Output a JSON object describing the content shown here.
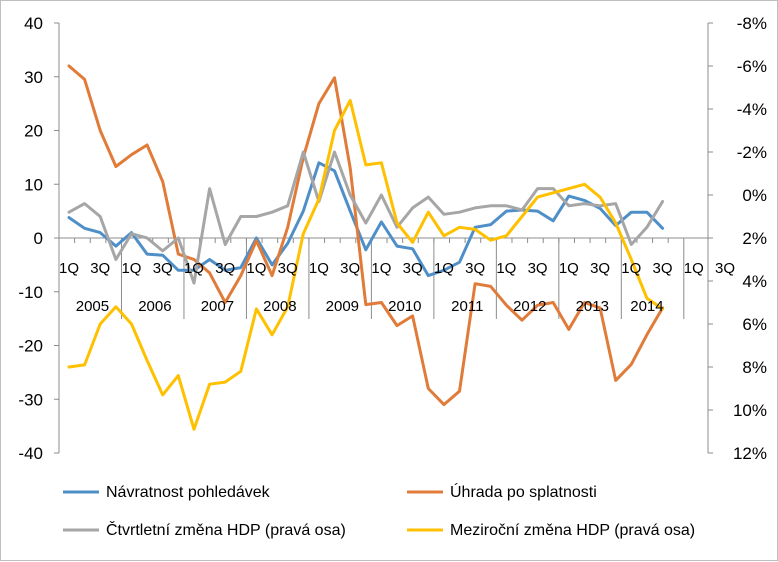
{
  "chart_data": {
    "type": "line",
    "quarter_labels": [
      "1Q",
      "",
      "3Q",
      "",
      "1Q",
      "",
      "3Q",
      "",
      "1Q",
      "",
      "3Q",
      "",
      "1Q",
      "",
      "3Q",
      "",
      "1Q",
      "",
      "3Q",
      "",
      "1Q",
      "",
      "3Q",
      "",
      "1Q",
      "",
      "3Q",
      "",
      "1Q",
      "",
      "3Q",
      "",
      "1Q",
      "",
      "3Q",
      "",
      "1Q",
      "",
      "3Q",
      "",
      "1Q",
      "",
      "3Q"
    ],
    "year_labels": [
      "2005",
      "2006",
      "2007",
      "2008",
      "2009",
      "2010",
      "2011",
      "2012",
      "2013",
      "2014"
    ],
    "left_axis": {
      "ticks": [
        "40",
        "30",
        "20",
        "10",
        "0",
        "-10",
        "-20",
        "-30",
        "-40"
      ],
      "ylim": [
        -40,
        40
      ]
    },
    "right_axis": {
      "ticks": [
        "-8%",
        "-6%",
        "-4%",
        "-2%",
        "0%",
        "2%",
        "4%",
        "6%",
        "8%",
        "10%",
        "12%"
      ],
      "ylim": [
        -8,
        12
      ],
      "reversed": true
    },
    "grid": false,
    "legend_position": "bottom",
    "series": [
      {
        "name": "Návratnost pohledávek",
        "axis": "left",
        "color": "#4f8fc8",
        "values": [
          3.8,
          1.8,
          1.0,
          -1.5,
          1.0,
          -3.0,
          -3.2,
          -6.0,
          -6.0,
          -4.0,
          -6.0,
          -5.5,
          0.0,
          -5.0,
          -1.0,
          5.0,
          14.0,
          12.5,
          5.0,
          -2.2,
          3.0,
          -1.5,
          -2.0,
          -7.0,
          -6.0,
          -4.5,
          2.0,
          2.5,
          5.0,
          5.2,
          5.0,
          3.2,
          7.8,
          7.0,
          5.5,
          2.3,
          4.8,
          4.8,
          1.8
        ]
      },
      {
        "name": "Úhrada po splatnosti",
        "axis": "left",
        "color": "#e07b39",
        "values": [
          32.0,
          29.5,
          20.0,
          13.3,
          15.5,
          17.3,
          10.5,
          -3.0,
          -4.0,
          -6.5,
          -12.0,
          -7.0,
          -0.5,
          -7.0,
          2.0,
          15.0,
          25.0,
          29.8,
          13.0,
          -12.4,
          -12.0,
          -16.3,
          -14.5,
          -28.0,
          -31.0,
          -28.5,
          -8.5,
          -9.0,
          -12.5,
          -15.3,
          -12.5,
          -12.0,
          -17.0,
          -12.0,
          -13.0,
          -26.5,
          -23.5,
          -18.0,
          -13.0
        ]
      },
      {
        "name": "Čtvrtletní změna HDP (pravá osa)",
        "axis": "right",
        "color": "#a6a6a6",
        "values": [
          0.8,
          0.4,
          1.0,
          3.0,
          1.8,
          2.0,
          2.6,
          2.0,
          4.1,
          -0.3,
          2.3,
          1.0,
          1.0,
          0.8,
          0.5,
          -2.0,
          0.3,
          -2.0,
          0.0,
          1.3,
          0.0,
          1.5,
          0.6,
          0.1,
          0.9,
          0.8,
          0.6,
          0.5,
          0.5,
          0.7,
          -0.3,
          -0.3,
          0.5,
          0.4,
          0.5,
          0.4,
          2.3,
          1.5,
          0.3
        ]
      },
      {
        "name": "Meziroční změna HDP (pravá osa)",
        "axis": "right",
        "color": "#ffc000",
        "values": [
          8.0,
          7.9,
          6.0,
          5.2,
          6.0,
          7.7,
          9.3,
          8.4,
          10.9,
          8.8,
          8.7,
          8.2,
          5.3,
          6.5,
          5.2,
          1.8,
          0.2,
          -3.0,
          -4.4,
          -1.4,
          -1.5,
          1.3,
          2.2,
          0.8,
          1.9,
          1.5,
          1.6,
          2.1,
          1.9,
          1.0,
          0.1,
          -0.1,
          -0.3,
          -0.5,
          0.1,
          1.3,
          3.0,
          4.8,
          5.3
        ]
      }
    ]
  }
}
